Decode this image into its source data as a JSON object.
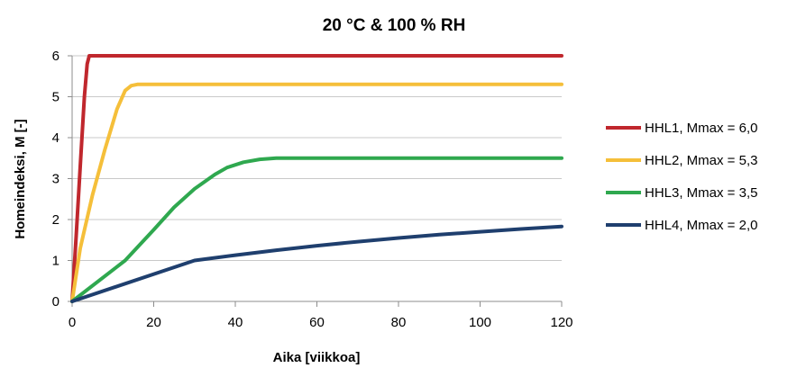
{
  "chart_data": {
    "type": "line",
    "title": "20 °C & 100 % RH",
    "xlabel": "Aika [viikkoa]",
    "ylabel": "Homeindeksi, M [-]",
    "xlim": [
      0,
      120
    ],
    "ylim": [
      0,
      6
    ],
    "xticks": [
      "0",
      "20",
      "40",
      "60",
      "80",
      "100",
      "120"
    ],
    "yticks": [
      "0",
      "1",
      "2",
      "3",
      "4",
      "5",
      "6"
    ],
    "grid": "horizontal",
    "legend_position": "right",
    "series": [
      {
        "name": "HHL1, Mmax = 6,0",
        "color": "#c0272d",
        "x": [
          0,
          1,
          2,
          3,
          3.7,
          4.2,
          5,
          120
        ],
        "y": [
          0,
          1.6,
          3.3,
          5.0,
          5.8,
          6.0,
          6.0,
          6.0
        ]
      },
      {
        "name": "HHL2, Mmax = 5,3",
        "color": "#f5bf3a",
        "x": [
          0,
          2,
          5,
          8,
          11,
          13,
          14.5,
          16,
          20,
          120
        ],
        "y": [
          0,
          1.3,
          2.6,
          3.7,
          4.7,
          5.15,
          5.27,
          5.3,
          5.3,
          5.3
        ]
      },
      {
        "name": "HHL3, Mmax = 3,5",
        "color": "#2fa84f",
        "x": [
          0,
          13,
          20,
          25,
          30,
          35,
          38,
          42,
          46,
          50,
          60,
          120
        ],
        "y": [
          0,
          1.0,
          1.75,
          2.3,
          2.75,
          3.1,
          3.27,
          3.4,
          3.47,
          3.5,
          3.5,
          3.5
        ]
      },
      {
        "name": "HHL4, Mmax = 2,0",
        "color": "#1f3f6e",
        "x": [
          0,
          30,
          40,
          50,
          60,
          70,
          80,
          90,
          100,
          110,
          120
        ],
        "y": [
          0,
          1.0,
          1.13,
          1.25,
          1.36,
          1.46,
          1.55,
          1.63,
          1.7,
          1.77,
          1.83
        ]
      }
    ]
  }
}
